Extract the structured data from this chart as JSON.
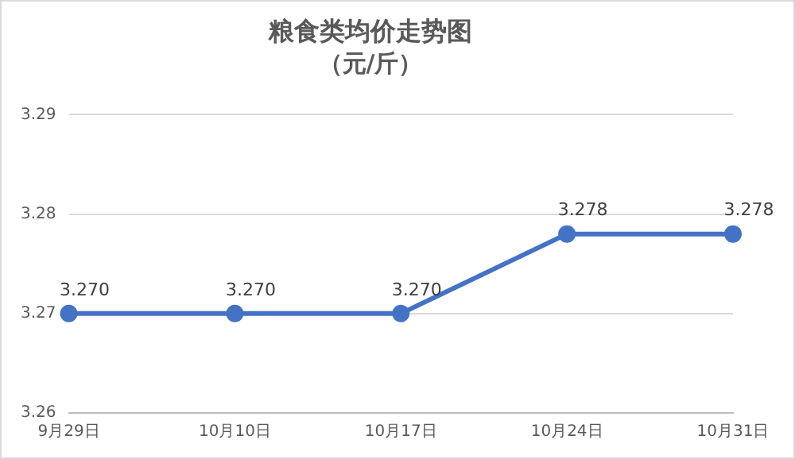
{
  "chart_data": {
    "type": "line",
    "title": "粮食类均价走势图",
    "subtitle": "（元/斤）",
    "categories": [
      "9月29日",
      "10月10日",
      "10月17日",
      "10月24日",
      "10月31日"
    ],
    "series": [
      {
        "color": "#4472c4",
        "values": [
          3.27,
          3.27,
          3.27,
          3.278,
          3.278
        ],
        "value_labels": [
          "3.270",
          "3.270",
          "3.270",
          "3.278",
          "3.278"
        ]
      }
    ],
    "ylim": [
      3.26,
      3.29
    ],
    "yticks": [
      3.26,
      3.27,
      3.28,
      3.29
    ],
    "grid": "y",
    "legend": false,
    "marker": "circle",
    "line_style": "solid"
  }
}
